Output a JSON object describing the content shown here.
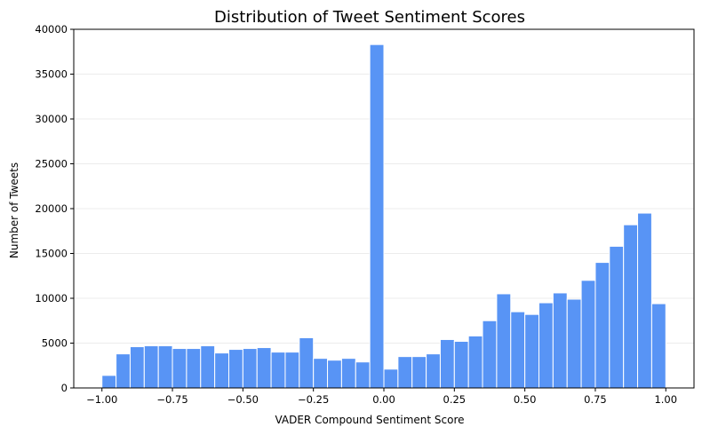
{
  "chart_data": {
    "type": "bar",
    "title": "Distribution of Tweet Sentiment Scores",
    "xlabel": "VADER Compound Sentiment Score",
    "ylabel": "Number of Tweets",
    "xlim": [
      -1.1,
      1.1
    ],
    "ylim": [
      0,
      40000
    ],
    "x_ticks": [
      -1.0,
      -0.75,
      -0.5,
      -0.25,
      0.0,
      0.25,
      0.5,
      0.75,
      1.0
    ],
    "x_tick_labels": [
      "−1.00",
      "−0.75",
      "−0.50",
      "−0.25",
      "0.00",
      "0.25",
      "0.50",
      "0.75",
      "1.00"
    ],
    "y_ticks": [
      0,
      5000,
      10000,
      15000,
      20000,
      25000,
      30000,
      35000,
      40000
    ],
    "y_tick_labels": [
      "0",
      "5000",
      "10000",
      "15000",
      "20000",
      "25000",
      "30000",
      "35000",
      "40000"
    ],
    "grid": "horizontal",
    "bar_color": "#5894f5",
    "bar_edge_color": "#ffffff",
    "bins": {
      "start": -1.0,
      "end": 1.0,
      "count": 40,
      "values": [
        1400,
        3800,
        4600,
        4700,
        4700,
        4400,
        4400,
        4700,
        3900,
        4300,
        4400,
        4500,
        4000,
        4000,
        5600,
        3300,
        3100,
        3300,
        2900,
        38300,
        2100,
        3500,
        3500,
        3800,
        5400,
        5200,
        5800,
        7500,
        10500,
        8500,
        8200,
        9500,
        10600,
        9900,
        12000,
        14000,
        15800,
        18200,
        19500,
        9400
      ]
    }
  }
}
